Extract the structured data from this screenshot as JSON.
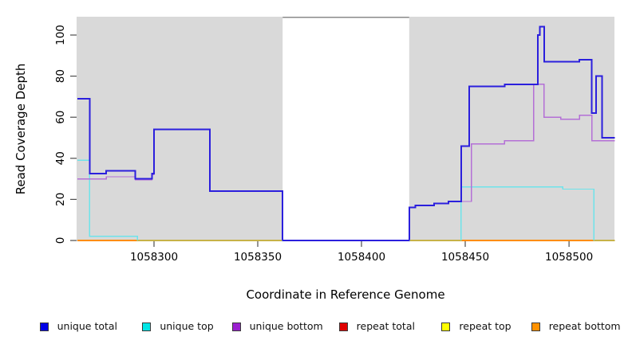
{
  "chart_data": {
    "type": "line",
    "subtype": "step-after-coverage-plot",
    "title": "",
    "xlabel": "Coordinate in Reference Genome",
    "ylabel": "Read Coverage Depth",
    "xlim": [
      1058262.7,
      1058521.9
    ],
    "ylim": [
      0,
      109
    ],
    "grid": "off",
    "legend_position": "bottom",
    "plot_bg": "#d9d9d9",
    "x_ticks": [
      1058300,
      1058350,
      1058400,
      1058450,
      1058500
    ],
    "y_ticks": [
      0,
      20,
      40,
      60,
      80,
      100
    ],
    "gap_region": {
      "x_start": 1058362,
      "x_end": 1058423,
      "fill": "#ffffff",
      "cap_color": "#8a8a8a"
    },
    "series": [
      {
        "name": "unique total",
        "color": "#0000e6",
        "line_color": "#2b1fdd",
        "width": 2,
        "points": [
          [
            1058263,
            69
          ],
          [
            1058269,
            32.5
          ],
          [
            1058277,
            34
          ],
          [
            1058291,
            30
          ],
          [
            1058299,
            32.5
          ],
          [
            1058300,
            54
          ],
          [
            1058327,
            24
          ],
          [
            1058362,
            0
          ],
          [
            1058423,
            16
          ],
          [
            1058426,
            17
          ],
          [
            1058435,
            18
          ],
          [
            1058442,
            19
          ],
          [
            1058448,
            46
          ],
          [
            1058452,
            75
          ],
          [
            1058469,
            76
          ],
          [
            1058485,
            100
          ],
          [
            1058486,
            104
          ],
          [
            1058488,
            87
          ],
          [
            1058505,
            88
          ],
          [
            1058511,
            62
          ],
          [
            1058513,
            80
          ],
          [
            1058516,
            50
          ],
          [
            1058522,
            50
          ]
        ]
      },
      {
        "name": "unique top",
        "color": "#00e5e5",
        "line_color": "#6ee3ea",
        "width": 1.4,
        "points": [
          [
            1058263,
            39
          ],
          [
            1058269,
            2
          ],
          [
            1058292,
            0
          ],
          [
            1058448,
            26
          ],
          [
            1058497,
            25
          ],
          [
            1058512,
            0
          ],
          [
            1058522,
            0
          ]
        ]
      },
      {
        "name": "unique bottom",
        "color": "#9b20d0",
        "line_color": "#b46fd6",
        "width": 1.4,
        "points": [
          [
            1058263,
            30
          ],
          [
            1058277,
            31
          ],
          [
            1058291,
            29.5
          ],
          [
            1058299,
            32
          ],
          [
            1058300,
            54
          ],
          [
            1058327,
            24
          ],
          [
            1058362,
            0
          ],
          [
            1058423,
            16
          ],
          [
            1058426,
            17
          ],
          [
            1058435,
            18
          ],
          [
            1058442,
            19
          ],
          [
            1058453,
            47
          ],
          [
            1058469,
            48.5
          ],
          [
            1058483,
            76
          ],
          [
            1058488,
            60
          ],
          [
            1058496,
            59
          ],
          [
            1058505,
            61
          ],
          [
            1058511,
            48.5
          ],
          [
            1058522,
            48.5
          ]
        ]
      },
      {
        "name": "repeat total",
        "color": "#e00000",
        "line_color": "#e00000",
        "width": 1.4,
        "points": [
          [
            1058263,
            0
          ],
          [
            1058522,
            0
          ]
        ]
      },
      {
        "name": "repeat top",
        "color": "#ffff00",
        "line_color": "#f0f000",
        "width": 1.4,
        "points": [
          [
            1058263,
            0
          ],
          [
            1058522,
            0
          ]
        ]
      },
      {
        "name": "repeat bottom",
        "color": "#ff9100",
        "line_color": "#ff8c00",
        "width": 2,
        "points": [
          [
            1058263,
            0
          ],
          [
            1058522,
            0
          ]
        ]
      }
    ],
    "baseline_overlap": {
      "color": "#8fd98f",
      "width": 1.4,
      "segments": [
        [
          1058292,
          1058362
        ],
        [
          1058423,
          1058448
        ],
        [
          1058512,
          1058522
        ]
      ]
    }
  }
}
